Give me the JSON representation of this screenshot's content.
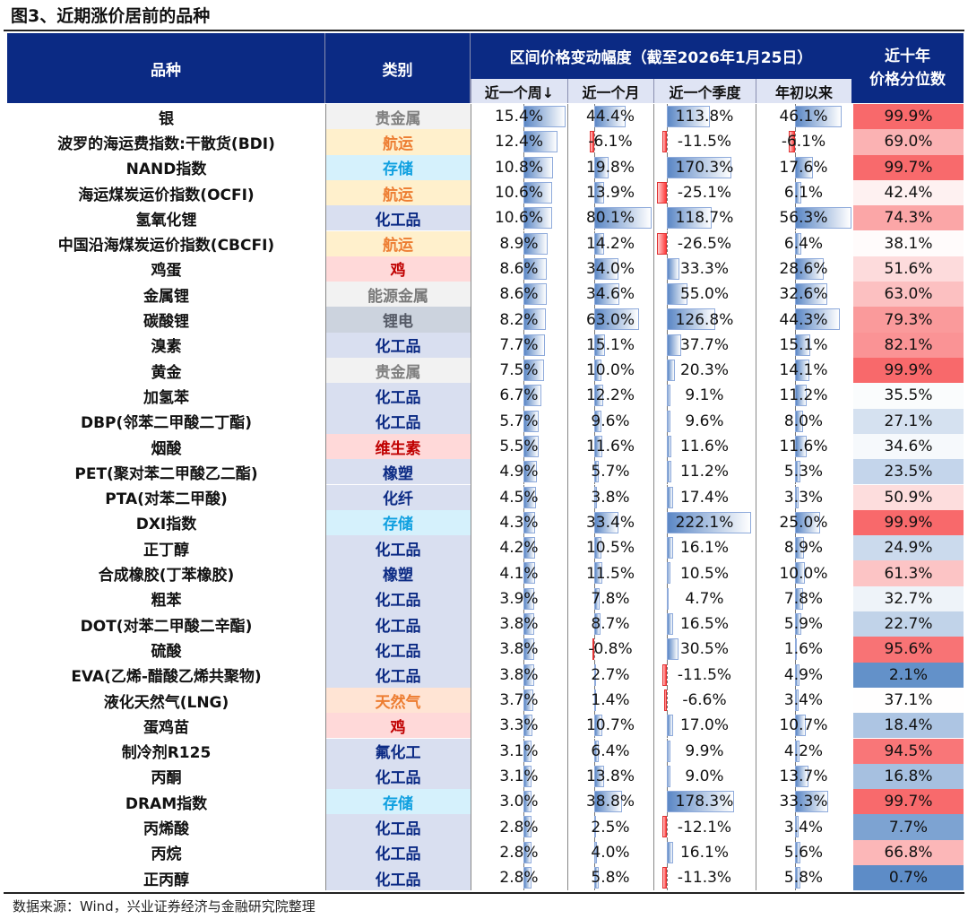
{
  "title": "图3、近期涨价居前的品种",
  "source": "数据来源：Wind，兴业证券经济与金融研究院整理",
  "header": {
    "name": "品种",
    "category": "类别",
    "group": "区间价格变动幅度（截至2026年1月25日）",
    "week": "近一个周↓",
    "month": "近一个月",
    "quarter": "近一个季度",
    "ytd": "年初以来",
    "percentile_line1": "近十年",
    "percentile_line2": "价格分位数"
  },
  "category_styles": {
    "贵金属": {
      "bg": "#f2f2f2",
      "color": "#808080"
    },
    "航运": {
      "bg": "#fff0cc",
      "color": "#ed7d31"
    },
    "存储": {
      "bg": "#d5f1fc",
      "color": "#0fa0e0"
    },
    "化工品": {
      "bg": "#d9dff0",
      "color": "#0b2a84"
    },
    "鸡": {
      "bg": "#ffd9d9",
      "color": "#c00000"
    },
    "能源金属": {
      "bg": "#f2f2f2",
      "color": "#7a7a7a"
    },
    "锂电": {
      "bg": "#ccd3de",
      "color": "#555a66"
    },
    "维生素": {
      "bg": "#ffd9d9",
      "color": "#c00000"
    },
    "橡塑": {
      "bg": "#d9dff0",
      "color": "#0b2a84"
    },
    "化纤": {
      "bg": "#d9dff0",
      "color": "#0b2a84"
    },
    "天然气": {
      "bg": "#ffe4d4",
      "color": "#ed7d31"
    },
    "氟化工": {
      "bg": "#d9dff0",
      "color": "#0b2a84"
    }
  },
  "colors": {
    "header_bg": "#0b2a84",
    "bar_pos": "#5b87c5",
    "bar_neg": "#ff3b3b",
    "pct_high": "#f8696b",
    "pct_mid": "#ffffff",
    "pct_low": "#5a8ac6"
  },
  "chart_data": {
    "type": "table",
    "columns": [
      "品种",
      "类别",
      "近一个周",
      "近一个月",
      "近一个季度",
      "年初以来",
      "近十年价格分位数"
    ],
    "rows": [
      {
        "name": "银",
        "category": "贵金属",
        "week": 15.4,
        "month": 44.4,
        "quarter": 113.8,
        "ytd": 46.1,
        "percentile": 99.9
      },
      {
        "name": "波罗的海运费指数:干散货(BDI)",
        "category": "航运",
        "week": 12.4,
        "month": -6.1,
        "quarter": -11.5,
        "ytd": -6.1,
        "percentile": 69.0
      },
      {
        "name": "NAND指数",
        "category": "存储",
        "week": 10.8,
        "month": 19.8,
        "quarter": 170.3,
        "ytd": 17.6,
        "percentile": 99.7
      },
      {
        "name": "海运煤炭运价指数(OCFI)",
        "category": "航运",
        "week": 10.6,
        "month": 13.9,
        "quarter": -25.1,
        "ytd": 6.1,
        "percentile": 42.4
      },
      {
        "name": "氢氧化锂",
        "category": "化工品",
        "week": 10.6,
        "month": 80.1,
        "quarter": 118.7,
        "ytd": 56.3,
        "percentile": 74.3
      },
      {
        "name": "中国沿海煤炭运价指数(CBCFI)",
        "category": "航运",
        "week": 8.9,
        "month": 14.2,
        "quarter": -26.5,
        "ytd": 6.4,
        "percentile": 38.1
      },
      {
        "name": "鸡蛋",
        "category": "鸡",
        "week": 8.6,
        "month": 34.0,
        "quarter": 33.3,
        "ytd": 28.6,
        "percentile": 51.6
      },
      {
        "name": "金属锂",
        "category": "能源金属",
        "week": 8.6,
        "month": 34.6,
        "quarter": 55.0,
        "ytd": 32.6,
        "percentile": 63.0
      },
      {
        "name": "碳酸锂",
        "category": "锂电",
        "week": 8.2,
        "month": 63.0,
        "quarter": 126.8,
        "ytd": 44.3,
        "percentile": 79.3
      },
      {
        "name": "溴素",
        "category": "化工品",
        "week": 7.7,
        "month": 15.1,
        "quarter": 37.7,
        "ytd": 15.1,
        "percentile": 82.1
      },
      {
        "name": "黄金",
        "category": "贵金属",
        "week": 7.5,
        "month": 10.0,
        "quarter": 20.3,
        "ytd": 14.1,
        "percentile": 99.9
      },
      {
        "name": "加氢苯",
        "category": "化工品",
        "week": 6.7,
        "month": 12.2,
        "quarter": 9.1,
        "ytd": 11.2,
        "percentile": 35.5
      },
      {
        "name": "DBP(邻苯二甲酸二丁酯)",
        "category": "化工品",
        "week": 5.7,
        "month": 9.6,
        "quarter": 9.6,
        "ytd": 8.0,
        "percentile": 27.1
      },
      {
        "name": "烟酸",
        "category": "维生素",
        "week": 5.5,
        "month": 11.6,
        "quarter": 11.6,
        "ytd": 11.6,
        "percentile": 34.6
      },
      {
        "name": "PET(聚对苯二甲酸乙二酯)",
        "category": "橡塑",
        "week": 4.9,
        "month": 5.7,
        "quarter": 11.2,
        "ytd": 5.3,
        "percentile": 23.5
      },
      {
        "name": "PTA(对苯二甲酸)",
        "category": "化纤",
        "week": 4.5,
        "month": 3.8,
        "quarter": 17.4,
        "ytd": 3.3,
        "percentile": 50.9
      },
      {
        "name": "DXI指数",
        "category": "存储",
        "week": 4.3,
        "month": 33.4,
        "quarter": 222.1,
        "ytd": 25.0,
        "percentile": 99.9
      },
      {
        "name": "正丁醇",
        "category": "化工品",
        "week": 4.2,
        "month": 10.5,
        "quarter": 16.1,
        "ytd": 8.9,
        "percentile": 24.9
      },
      {
        "name": "合成橡胶(丁苯橡胶)",
        "category": "橡塑",
        "week": 4.1,
        "month": 11.5,
        "quarter": 10.5,
        "ytd": 10.0,
        "percentile": 61.3
      },
      {
        "name": "粗苯",
        "category": "化工品",
        "week": 3.9,
        "month": 7.8,
        "quarter": 4.7,
        "ytd": 7.8,
        "percentile": 32.7
      },
      {
        "name": "DOT(对苯二甲酸二辛酯)",
        "category": "化工品",
        "week": 3.8,
        "month": 8.7,
        "quarter": 16.5,
        "ytd": 5.9,
        "percentile": 22.7
      },
      {
        "name": "硫酸",
        "category": "化工品",
        "week": 3.8,
        "month": -0.8,
        "quarter": 30.5,
        "ytd": 1.6,
        "percentile": 95.6
      },
      {
        "name": "EVA(乙烯-醋酸乙烯共聚物)",
        "category": "化工品",
        "week": 3.8,
        "month": 2.7,
        "quarter": -11.5,
        "ytd": 4.9,
        "percentile": 2.1
      },
      {
        "name": "液化天然气(LNG)",
        "category": "天然气",
        "week": 3.7,
        "month": 1.4,
        "quarter": -6.6,
        "ytd": 3.4,
        "percentile": 37.1
      },
      {
        "name": "蛋鸡苗",
        "category": "鸡",
        "week": 3.3,
        "month": 10.7,
        "quarter": 17.0,
        "ytd": 10.7,
        "percentile": 18.4
      },
      {
        "name": "制冷剂R125",
        "category": "氟化工",
        "week": 3.1,
        "month": 6.4,
        "quarter": 9.9,
        "ytd": 4.2,
        "percentile": 94.5
      },
      {
        "name": "丙酮",
        "category": "化工品",
        "week": 3.1,
        "month": 13.8,
        "quarter": 9.0,
        "ytd": 13.7,
        "percentile": 16.8
      },
      {
        "name": "DRAM指数",
        "category": "存储",
        "week": 3.0,
        "month": 38.8,
        "quarter": 178.3,
        "ytd": 33.3,
        "percentile": 99.7
      },
      {
        "name": "丙烯酸",
        "category": "化工品",
        "week": 2.8,
        "month": 2.5,
        "quarter": -12.1,
        "ytd": 3.4,
        "percentile": 7.7
      },
      {
        "name": "丙烷",
        "category": "化工品",
        "week": 2.8,
        "month": 4.0,
        "quarter": 16.1,
        "ytd": 5.6,
        "percentile": 66.8
      },
      {
        "name": "正丙醇",
        "category": "化工品",
        "week": 2.8,
        "month": 5.8,
        "quarter": -11.3,
        "ytd": 5.8,
        "percentile": 0.7
      }
    ]
  }
}
